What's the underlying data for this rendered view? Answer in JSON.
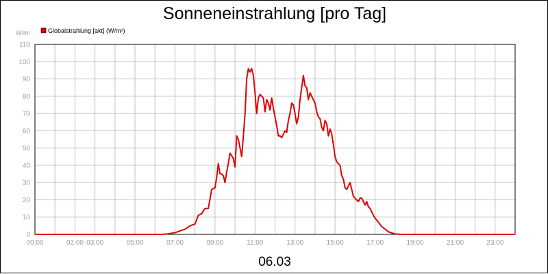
{
  "chart_data": {
    "type": "line",
    "title": "Sonneneinstrahlung [pro Tag]",
    "xlabel": "06.03",
    "ylabel": "W/m²",
    "ylim": [
      0,
      110
    ],
    "xlim": [
      "00:00",
      "24:00"
    ],
    "grid": true,
    "legend_position": "top-left",
    "yticks": [
      "0",
      "10",
      "20",
      "30",
      "40",
      "50",
      "60",
      "70",
      "80",
      "90",
      "100",
      "110"
    ],
    "xticks": [
      "00:00",
      "02:00",
      "03:00",
      "05:00",
      "07:00",
      "09:00",
      "11:00",
      "13:00",
      "15:00",
      "17:00",
      "19:00",
      "21:00",
      "23:00"
    ],
    "series": [
      {
        "name": "Globalstrahlung [akt] (W/m²)",
        "color": "#e00000",
        "points": [
          [
            "00:00",
            0
          ],
          [
            "06:20",
            0
          ],
          [
            "06:40",
            0.3
          ],
          [
            "07:00",
            1
          ],
          [
            "07:15",
            2
          ],
          [
            "07:30",
            3
          ],
          [
            "07:45",
            5
          ],
          [
            "08:00",
            6
          ],
          [
            "08:10",
            11
          ],
          [
            "08:20",
            12
          ],
          [
            "08:30",
            15
          ],
          [
            "08:40",
            15
          ],
          [
            "08:50",
            26
          ],
          [
            "09:00",
            27
          ],
          [
            "09:05",
            33
          ],
          [
            "09:10",
            41
          ],
          [
            "09:15",
            35
          ],
          [
            "09:20",
            35
          ],
          [
            "09:25",
            34
          ],
          [
            "09:30",
            30
          ],
          [
            "09:35",
            36
          ],
          [
            "09:40",
            41
          ],
          [
            "09:45",
            47
          ],
          [
            "09:55",
            44
          ],
          [
            "10:00",
            39
          ],
          [
            "10:05",
            57
          ],
          [
            "10:10",
            55
          ],
          [
            "10:15",
            50
          ],
          [
            "10:20",
            45
          ],
          [
            "10:25",
            57
          ],
          [
            "10:30",
            70
          ],
          [
            "10:35",
            90
          ],
          [
            "10:40",
            96
          ],
          [
            "10:45",
            94
          ],
          [
            "10:50",
            96
          ],
          [
            "10:55",
            92
          ],
          [
            "11:00",
            82
          ],
          [
            "11:05",
            70
          ],
          [
            "11:10",
            79
          ],
          [
            "11:15",
            81
          ],
          [
            "11:20",
            80
          ],
          [
            "11:25",
            79
          ],
          [
            "11:30",
            71
          ],
          [
            "11:35",
            78
          ],
          [
            "11:40",
            76
          ],
          [
            "11:45",
            72
          ],
          [
            "11:50",
            79
          ],
          [
            "11:55",
            73
          ],
          [
            "12:00",
            68
          ],
          [
            "12:05",
            63
          ],
          [
            "12:10",
            57
          ],
          [
            "12:15",
            57
          ],
          [
            "12:20",
            56
          ],
          [
            "12:25",
            58
          ],
          [
            "12:30",
            60
          ],
          [
            "12:35",
            59
          ],
          [
            "12:40",
            66
          ],
          [
            "12:45",
            70
          ],
          [
            "12:50",
            76
          ],
          [
            "12:55",
            75
          ],
          [
            "13:00",
            70
          ],
          [
            "13:05",
            64
          ],
          [
            "13:10",
            68
          ],
          [
            "13:15",
            78
          ],
          [
            "13:20",
            85
          ],
          [
            "13:25",
            92
          ],
          [
            "13:30",
            86
          ],
          [
            "13:35",
            85
          ],
          [
            "13:40",
            78
          ],
          [
            "13:45",
            82
          ],
          [
            "13:50",
            80
          ],
          [
            "14:00",
            76
          ],
          [
            "14:05",
            71
          ],
          [
            "14:10",
            68
          ],
          [
            "14:15",
            67
          ],
          [
            "14:20",
            62
          ],
          [
            "14:25",
            60
          ],
          [
            "14:30",
            66
          ],
          [
            "14:35",
            64
          ],
          [
            "14:40",
            57
          ],
          [
            "14:45",
            61
          ],
          [
            "14:50",
            58
          ],
          [
            "14:55",
            52
          ],
          [
            "15:00",
            45
          ],
          [
            "15:05",
            42
          ],
          [
            "15:10",
            41
          ],
          [
            "15:15",
            40
          ],
          [
            "15:20",
            34
          ],
          [
            "15:25",
            32
          ],
          [
            "15:30",
            27
          ],
          [
            "15:35",
            26
          ],
          [
            "15:40",
            28
          ],
          [
            "15:45",
            30
          ],
          [
            "15:50",
            26
          ],
          [
            "15:55",
            22
          ],
          [
            "16:00",
            21
          ],
          [
            "16:05",
            20
          ],
          [
            "16:10",
            19
          ],
          [
            "16:15",
            21
          ],
          [
            "16:20",
            21
          ],
          [
            "16:25",
            19
          ],
          [
            "16:30",
            17
          ],
          [
            "16:35",
            19
          ],
          [
            "16:40",
            16
          ],
          [
            "16:45",
            15
          ],
          [
            "16:50",
            13
          ],
          [
            "16:55",
            11
          ],
          [
            "17:00",
            9.5
          ],
          [
            "17:10",
            7
          ],
          [
            "17:20",
            4.5
          ],
          [
            "17:30",
            3
          ],
          [
            "17:40",
            1.5
          ],
          [
            "17:50",
            0.8
          ],
          [
            "18:00",
            0.3
          ],
          [
            "18:15",
            0
          ],
          [
            "24:00",
            0
          ]
        ]
      }
    ]
  },
  "colors": {
    "frame_border": "#000000",
    "grid": "#c0c0c0",
    "axis_text": "#9a9a9a",
    "series": "#e00000"
  }
}
